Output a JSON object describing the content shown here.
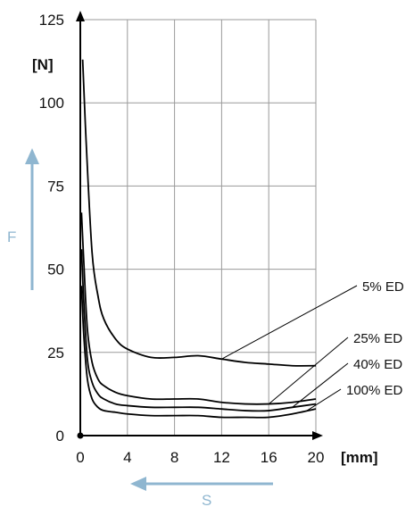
{
  "chart_data": {
    "type": "line",
    "title": "",
    "x_ticks": [
      "0",
      "4",
      "8",
      "12",
      "16",
      "20"
    ],
    "y_ticks": [
      "0",
      "25",
      "50",
      "75",
      "100",
      "125"
    ],
    "xlim": [
      0,
      20
    ],
    "ylim": [
      0,
      125
    ],
    "x_unit": "[mm]",
    "y_unit": "[N]",
    "x_var": "S",
    "y_var": "F",
    "grid": true,
    "series": [
      {
        "name": "5% ED",
        "x": [
          0.2,
          0.5,
          1,
          1.5,
          2,
          3,
          4,
          6,
          8,
          10,
          12,
          14,
          16,
          18,
          20
        ],
        "y": [
          113,
          88,
          55,
          42,
          35,
          29,
          26,
          23.5,
          23.5,
          24,
          23,
          22,
          21.5,
          21,
          21
        ]
      },
      {
        "name": "25% ED",
        "x": [
          0.1,
          0.3,
          0.6,
          1,
          1.5,
          2,
          3,
          4,
          6,
          8,
          10,
          12,
          14,
          16,
          18,
          20
        ],
        "y": [
          67,
          52,
          32,
          22,
          17,
          15,
          13,
          12,
          11,
          11,
          11,
          10,
          9.5,
          9.5,
          10,
          11
        ]
      },
      {
        "name": "40% ED",
        "x": [
          0.1,
          0.3,
          0.6,
          1,
          1.5,
          2,
          3,
          4,
          6,
          8,
          10,
          12,
          14,
          16,
          18,
          20
        ],
        "y": [
          56,
          40,
          23,
          16,
          12.5,
          11,
          9.5,
          9,
          8.5,
          8.5,
          8.5,
          8,
          7.5,
          7.5,
          8.5,
          9.5
        ]
      },
      {
        "name": "100% ED",
        "x": [
          0.1,
          0.3,
          0.6,
          1,
          1.5,
          2,
          3,
          4,
          6,
          8,
          10,
          12,
          14,
          16,
          18,
          20
        ],
        "y": [
          45,
          30,
          17,
          11,
          8.5,
          7.5,
          7,
          6.5,
          6,
          6,
          6,
          5.5,
          5.5,
          5.5,
          6.5,
          8
        ]
      }
    ]
  },
  "colors": {
    "curve": "#000000",
    "grid": "#9a9a9a",
    "arrow": "#8fb6d0"
  }
}
